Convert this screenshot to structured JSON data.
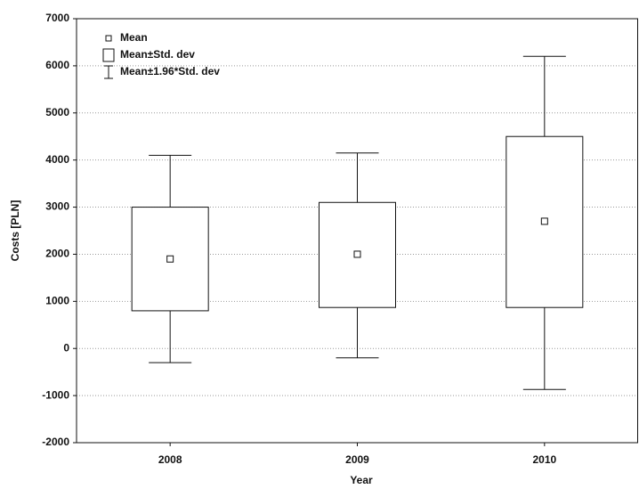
{
  "chart_data": {
    "type": "box",
    "x_label": "Year",
    "y_label": "Costs [PLN]",
    "categories": [
      "2008",
      "2009",
      "2010"
    ],
    "mean": [
      1900,
      2000,
      2700
    ],
    "box_low": [
      800,
      870,
      870
    ],
    "box_high": [
      3000,
      3100,
      4500
    ],
    "whisker_low": [
      -300,
      -200,
      -870
    ],
    "whisker_high": [
      4100,
      4150,
      6200
    ],
    "legend": [
      "Mean",
      "Mean±Std. dev",
      "Mean±1.96*Std. dev"
    ],
    "ylim": [
      -2000,
      7000
    ],
    "yticks": [
      -2000,
      -1000,
      0,
      1000,
      2000,
      3000,
      4000,
      5000,
      6000,
      7000
    ],
    "grid": true,
    "color": "#111111"
  }
}
